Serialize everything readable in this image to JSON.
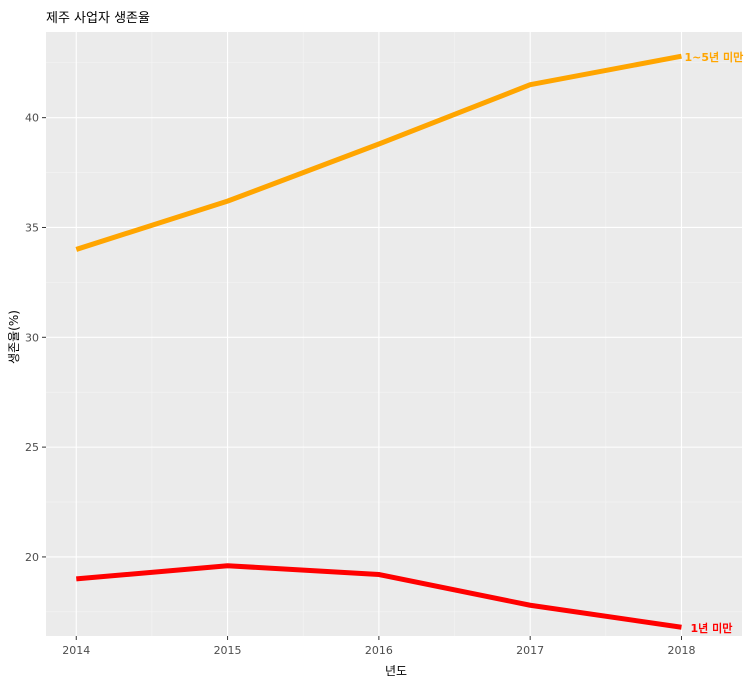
{
  "chart_data": {
    "type": "line",
    "title": "제주 사업자 생존율",
    "xlabel": "년도",
    "ylabel": "생존율(%)",
    "x": [
      2014,
      2015,
      2016,
      2017,
      2018
    ],
    "xlim": [
      2013.8,
      2018.4
    ],
    "ylim": [
      16.4,
      43.9
    ],
    "x_ticks": [
      "2014",
      "2015",
      "2016",
      "2017",
      "2018"
    ],
    "y_ticks": [
      20,
      25,
      30,
      35,
      40
    ],
    "y_tick_labels": [
      "20",
      "25",
      "30",
      "35",
      "40"
    ],
    "grid": true,
    "series": [
      {
        "name": "1~5년 미만",
        "color": "#FFA500",
        "values": [
          34.0,
          36.2,
          38.8,
          41.5,
          42.8
        ]
      },
      {
        "name": "1년 미만",
        "color": "#FF0000",
        "values": [
          19.0,
          19.6,
          19.2,
          17.8,
          16.8
        ]
      }
    ]
  }
}
